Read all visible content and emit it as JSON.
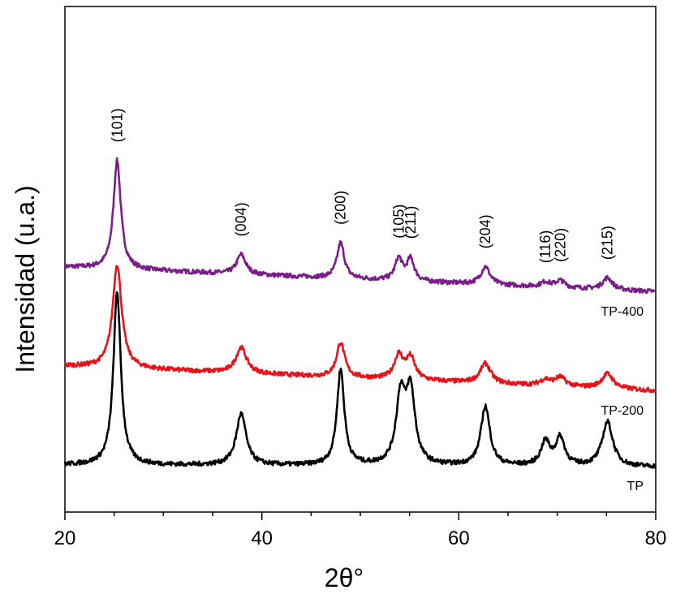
{
  "chart_data": {
    "type": "line",
    "xlabel": "2θ°",
    "ylabel": "Intensidad (u.a.)",
    "xlim": [
      20,
      80
    ],
    "xticks": [
      20,
      40,
      60,
      80
    ],
    "xtick_labels": [
      "20",
      "40",
      "60",
      "80"
    ],
    "y_ticks_shown": false,
    "grid": false,
    "legend": "none (series labelled on the right end of each curve)",
    "peak_labels": [
      {
        "x": 25.3,
        "label": "(101)"
      },
      {
        "x": 37.9,
        "label": "(004)"
      },
      {
        "x": 48.0,
        "label": "(200)"
      },
      {
        "x": 53.9,
        "label": "(105)"
      },
      {
        "x": 55.1,
        "label": "(211)"
      },
      {
        "x": 62.7,
        "label": "(204)"
      },
      {
        "x": 68.8,
        "label": "(116)"
      },
      {
        "x": 70.3,
        "label": "(220)"
      },
      {
        "x": 75.1,
        "label": "(215)"
      }
    ],
    "series": [
      {
        "name": "TP-400",
        "color": "#7B1E8C",
        "offset": 2.0,
        "baseline_start": 0.0,
        "baseline_end": -0.25,
        "peaks": [
          {
            "x": 25.3,
            "height": 1.1,
            "width": 0.45
          },
          {
            "x": 37.9,
            "height": 0.2,
            "width": 0.55
          },
          {
            "x": 48.0,
            "height": 0.36,
            "width": 0.45
          },
          {
            "x": 53.9,
            "height": 0.22,
            "width": 0.45
          },
          {
            "x": 55.1,
            "height": 0.22,
            "width": 0.45
          },
          {
            "x": 62.7,
            "height": 0.18,
            "width": 0.55
          },
          {
            "x": 68.8,
            "height": 0.05,
            "width": 0.55
          },
          {
            "x": 70.3,
            "height": 0.07,
            "width": 0.55
          },
          {
            "x": 75.1,
            "height": 0.12,
            "width": 0.6
          }
        ]
      },
      {
        "name": "TP-200",
        "color": "#E8131A",
        "offset": 1.0,
        "baseline_start": 0.0,
        "baseline_end": -0.25,
        "peaks": [
          {
            "x": 25.3,
            "height": 1.05,
            "width": 0.55
          },
          {
            "x": 37.9,
            "height": 0.26,
            "width": 0.65
          },
          {
            "x": 48.0,
            "height": 0.35,
            "width": 0.5
          },
          {
            "x": 53.9,
            "height": 0.24,
            "width": 0.55
          },
          {
            "x": 55.1,
            "height": 0.22,
            "width": 0.55
          },
          {
            "x": 62.7,
            "height": 0.2,
            "width": 0.65
          },
          {
            "x": 68.8,
            "height": 0.06,
            "width": 0.65
          },
          {
            "x": 70.3,
            "height": 0.09,
            "width": 0.65
          },
          {
            "x": 75.1,
            "height": 0.15,
            "width": 0.7
          }
        ]
      },
      {
        "name": "TP",
        "color": "#000000",
        "offset": 0.0,
        "baseline_start": 0.0,
        "baseline_end": -0.02,
        "peaks": [
          {
            "x": 25.3,
            "height": 1.75,
            "width": 0.45
          },
          {
            "x": 37.9,
            "height": 0.52,
            "width": 0.6
          },
          {
            "x": 48.0,
            "height": 0.97,
            "width": 0.45
          },
          {
            "x": 54.1,
            "height": 0.68,
            "width": 0.55
          },
          {
            "x": 55.1,
            "height": 0.72,
            "width": 0.55
          },
          {
            "x": 62.7,
            "height": 0.6,
            "width": 0.55
          },
          {
            "x": 68.8,
            "height": 0.24,
            "width": 0.55
          },
          {
            "x": 70.3,
            "height": 0.28,
            "width": 0.55
          },
          {
            "x": 75.1,
            "height": 0.45,
            "width": 0.65
          }
        ]
      }
    ]
  }
}
